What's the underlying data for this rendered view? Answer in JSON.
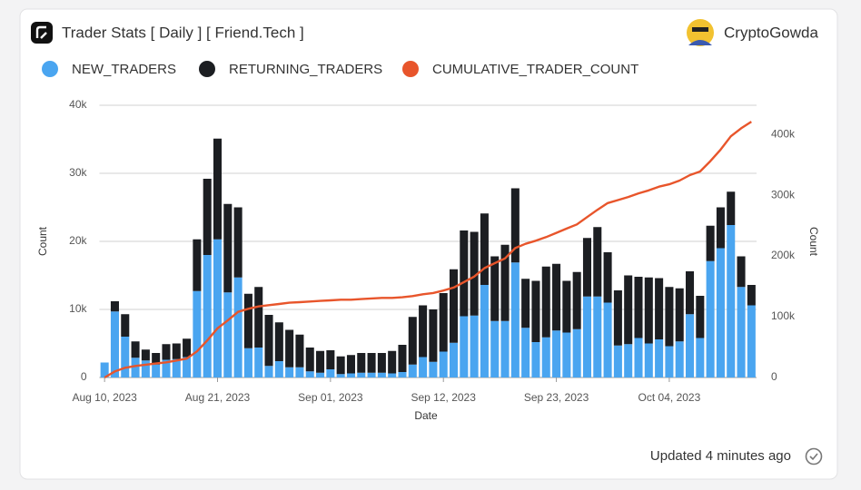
{
  "header": {
    "title": "Trader Stats [ Daily ] [ Friend.Tech ]",
    "author": "CryptoGowda"
  },
  "footer": {
    "updated": "Updated 4 minutes ago"
  },
  "chart_data": {
    "type": "stacked_bar_line",
    "xlabel": "Date",
    "ylabel": "Count",
    "y2label": "Count",
    "categories": [
      "Aug 10, 2023",
      null,
      null,
      null,
      null,
      null,
      null,
      null,
      null,
      null,
      null,
      "Aug 21, 2023",
      null,
      null,
      null,
      null,
      null,
      null,
      null,
      null,
      null,
      null,
      "Sep 01, 2023",
      null,
      null,
      null,
      null,
      null,
      null,
      null,
      null,
      null,
      null,
      "Sep 12, 2023",
      null,
      null,
      null,
      null,
      null,
      null,
      null,
      null,
      null,
      null,
      "Sep 23, 2023",
      null,
      null,
      null,
      null,
      null,
      null,
      null,
      null,
      null,
      null,
      "Oct 04, 2023",
      null,
      null,
      null,
      null,
      null,
      null,
      null,
      null
    ],
    "series": [
      {
        "name": "NEW_TRADERS",
        "color": "#4aa5f0",
        "values": [
          2200,
          9700,
          6000,
          2900,
          2500,
          1900,
          2600,
          2700,
          3000,
          12700,
          18000,
          20300,
          12500,
          14700,
          4300,
          4400,
          1700,
          2400,
          1500,
          1500,
          900,
          700,
          1200,
          500,
          600,
          700,
          700,
          700,
          600,
          800,
          1900,
          3000,
          2300,
          3800,
          5100,
          9000,
          9100,
          13600,
          8300,
          8300,
          16900,
          7300,
          5200,
          5900,
          6900,
          6600,
          7100,
          11900,
          11900,
          11000,
          4700,
          4900,
          5800,
          5000,
          5600,
          4600,
          5300,
          9300,
          5800,
          17100,
          19000,
          22400,
          13300,
          10600
        ]
      },
      {
        "name": "RETURNING_TRADERS",
        "color": "#1c1e22",
        "values": [
          0,
          1500,
          3300,
          2400,
          1600,
          1700,
          2300,
          2300,
          2700,
          7600,
          11200,
          14800,
          13000,
          10300,
          8000,
          8900,
          7500,
          5700,
          5500,
          4800,
          3500,
          3200,
          2800,
          2600,
          2700,
          2900,
          2900,
          2900,
          3300,
          4000,
          7000,
          7600,
          7700,
          8600,
          10800,
          12600,
          12300,
          10500,
          9500,
          11200,
          10900,
          7200,
          9000,
          10400,
          9800,
          7600,
          8400,
          8600,
          10200,
          7400,
          8100,
          10100,
          9000,
          9700,
          9000,
          8700,
          7800,
          6300,
          6200,
          5200,
          6000,
          4900,
          4500,
          3000
        ]
      },
      {
        "name": "CUMULATIVE_TRADER_COUNT",
        "color": "#e8552b",
        "axis": "y2",
        "values": [
          0,
          10000,
          16000,
          19000,
          21000,
          23000,
          25000,
          28000,
          31000,
          43000,
          61000,
          81000,
          94000,
          108000,
          113000,
          117000,
          119000,
          121000,
          123000,
          124000,
          125000,
          126000,
          127000,
          128000,
          128000,
          129000,
          130000,
          131000,
          131000,
          132000,
          134000,
          137000,
          139000,
          143000,
          148000,
          157000,
          166000,
          180000,
          188000,
          196000,
          213000,
          220000,
          225000,
          231000,
          238000,
          245000,
          252000,
          264000,
          276000,
          287000,
          292000,
          297000,
          303000,
          308000,
          314000,
          318000,
          324000,
          333000,
          339000,
          356000,
          375000,
          397000,
          410000,
          421000
        ]
      }
    ],
    "ylim": [
      0,
      40000
    ],
    "yticks": [
      0,
      {
        "value": 10000,
        "label": "10k"
      },
      {
        "value": 20000,
        "label": "20k"
      },
      {
        "value": 30000,
        "label": "30k"
      },
      {
        "value": 40000,
        "label": "40k"
      }
    ],
    "y2lim": [
      0,
      448000
    ],
    "y2ticks": [
      0,
      {
        "value": 100000,
        "label": "100k"
      },
      {
        "value": 200000,
        "label": "200k"
      },
      {
        "value": 300000,
        "label": "300k"
      },
      {
        "value": 400000,
        "label": "400k"
      }
    ],
    "grid": true,
    "legend": "top"
  }
}
